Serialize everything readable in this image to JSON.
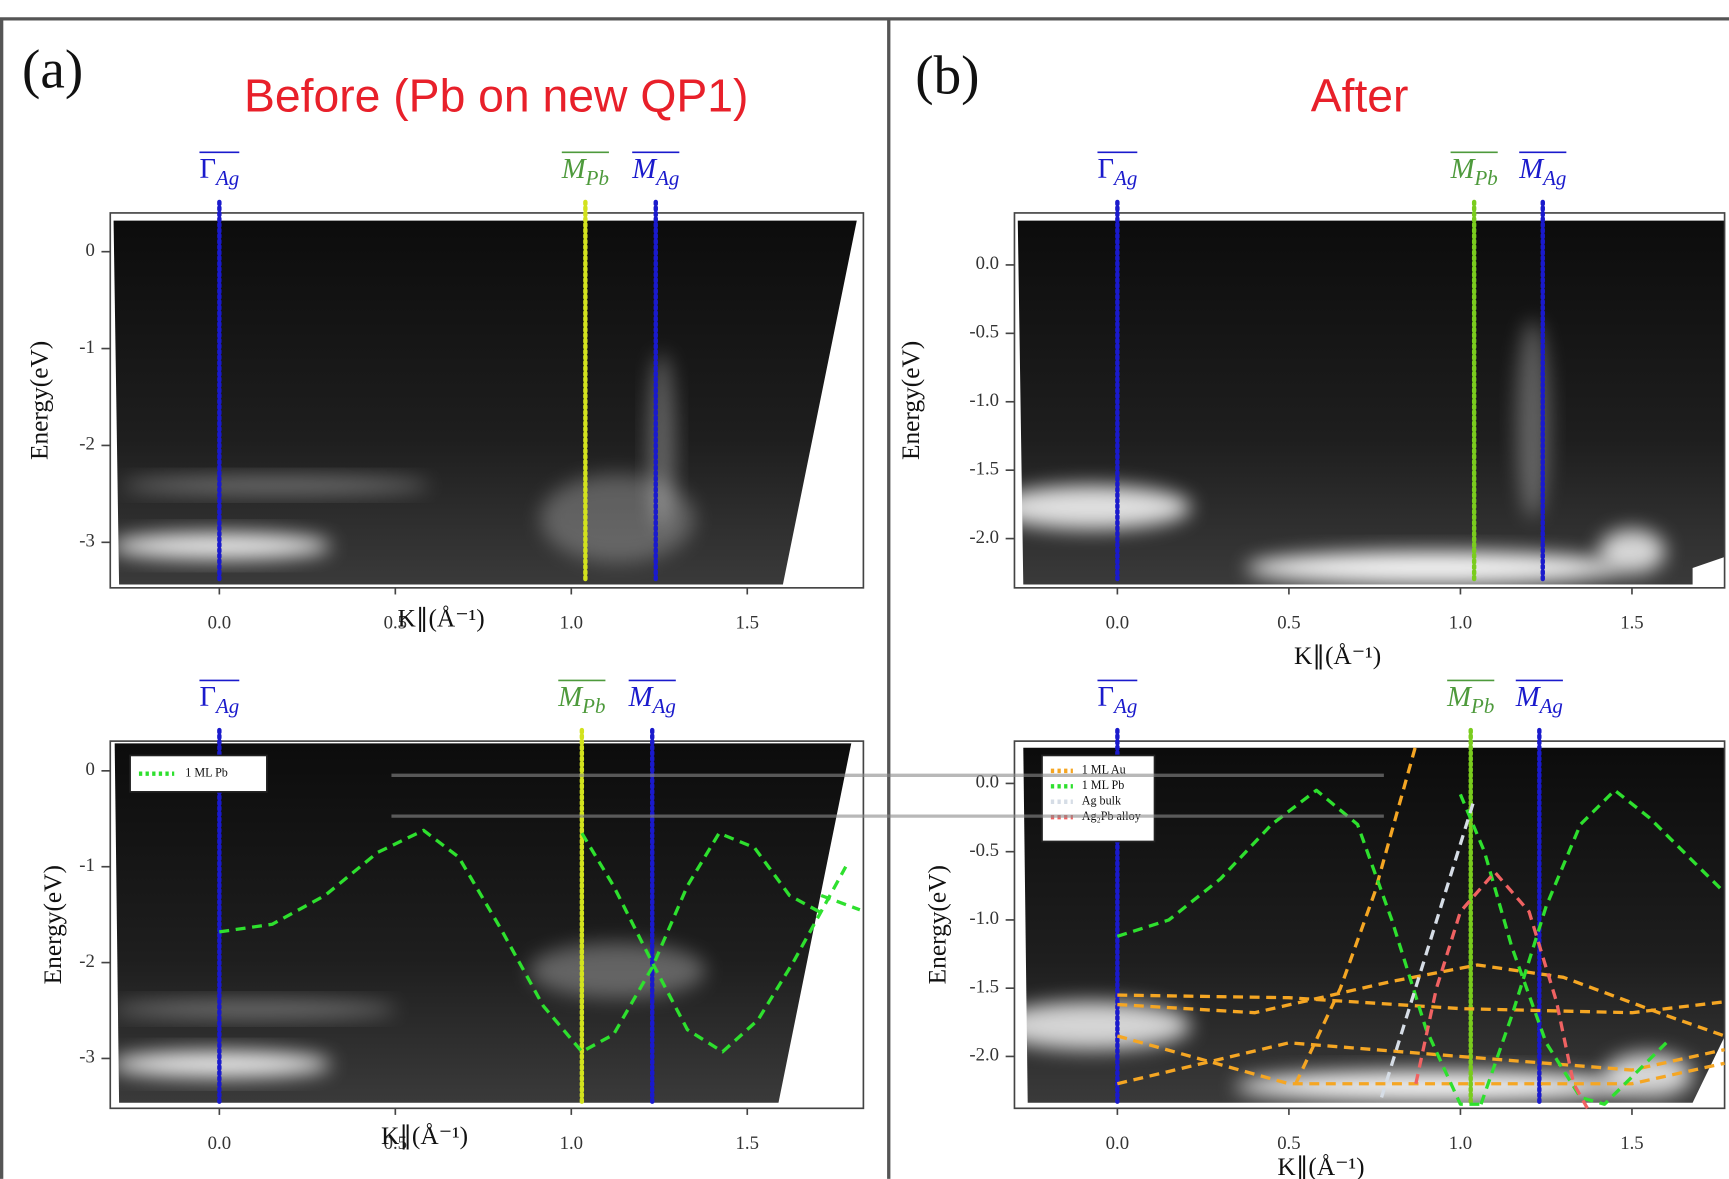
{
  "panels": [
    {
      "label": "(a)",
      "title": "Before (Pb on new QP1)",
      "plots": [
        {
          "ylabel": "Energy(eV)",
          "xlabel": "K∥(Å⁻¹)",
          "xlim": [
            -0.31,
            1.83
          ],
          "ylim": [
            -3.47,
            0.4
          ],
          "xticks": [
            {
              "value": 0,
              "label": "0.0"
            },
            0.5,
            {
              "value": 1,
              "label": "1.0"
            },
            1.5
          ],
          "yticks": [
            0,
            -1,
            -2,
            -3
          ],
          "points": [
            {
              "symbol": "Γ",
              "sub": "Ag",
              "x": 0,
              "color": "#1a1acc"
            },
            {
              "symbol": "M",
              "sub": "Pb",
              "x": 1.04,
              "color": "#d2e21e"
            },
            {
              "symbol": "M",
              "sub": "Ag",
              "x": 1.24,
              "color": "#1a1acc"
            }
          ],
          "series": []
        },
        {
          "ylabel": "Energy(eV)",
          "xlabel": "K∥(Å⁻¹)",
          "xlim": [
            -0.31,
            1.83
          ],
          "ylim": [
            -3.52,
            0.31
          ],
          "xticks": [
            {
              "value": 0,
              "label": "0.0"
            },
            0.5,
            {
              "value": 1,
              "label": "1.0"
            },
            1.5
          ],
          "yticks": [
            0,
            -1,
            -2,
            -3
          ],
          "points": [
            {
              "symbol": "Γ",
              "sub": "Ag",
              "x": 0,
              "color": "#1a1acc"
            },
            {
              "symbol": "M",
              "sub": "Pb",
              "x": 1.03,
              "color": "#d2e21e"
            },
            {
              "symbol": "M",
              "sub": "Ag",
              "x": 1.23,
              "color": "#1a1acc"
            }
          ],
          "legend": "upper left",
          "series": [
            {
              "name": "1 ML Pb",
              "color": "#2ee02e",
              "x": [
                0,
                0.15,
                0.3,
                0.45,
                0.58,
                0.68,
                0.8,
                0.92,
                1.03,
                1.12,
                1.23,
                1.33,
                1.42,
                1.52,
                1.62,
                1.72,
                null,
                1.03,
                1.12,
                1.23,
                1.33,
                1.43,
                1.53,
                1.63,
                1.72,
                1.78,
                null,
                1.71,
                1.82
              ],
              "values": [
                -1.68,
                -1.6,
                -1.3,
                -0.85,
                -0.62,
                -0.9,
                -1.65,
                -2.45,
                -2.93,
                -2.75,
                -2.05,
                -1.2,
                -0.65,
                -0.8,
                -1.3,
                -1.5,
                null,
                -0.65,
                -1.2,
                -2.0,
                -2.7,
                -2.93,
                -2.6,
                -2.0,
                -1.4,
                -1.0,
                null,
                -1.3,
                -1.45
              ]
            }
          ]
        }
      ]
    },
    {
      "label": "(b)",
      "title": "After",
      "plots": [
        {
          "ylabel": "Energy(eV)",
          "xlabel": "K∥(Å⁻¹)",
          "xlim": [
            -0.3,
            1.77
          ],
          "ylim": [
            -2.36,
            0.38
          ],
          "xticks": [
            {
              "value": 0,
              "label": "0.0"
            },
            0.5,
            {
              "value": 1,
              "label": "1.0"
            },
            1.5
          ],
          "yticks": [
            {
              "value": 0,
              "label": "0.0"
            },
            -0.5,
            {
              "value": -1,
              "label": "-1.0"
            },
            -1.5,
            {
              "value": -2,
              "label": "-2.0"
            }
          ],
          "points": [
            {
              "symbol": "Γ",
              "sub": "Ag",
              "x": 0,
              "color": "#1a1acc"
            },
            {
              "symbol": "M",
              "sub": "Pb",
              "x": 1.04,
              "color": "#7acc1e"
            },
            {
              "symbol": "M",
              "sub": "Ag",
              "x": 1.24,
              "color": "#1a1acc"
            }
          ],
          "series": []
        },
        {
          "ylabel": "Energy(eV)",
          "xlabel": "K∥(Å⁻¹)",
          "xlim": [
            -0.3,
            1.77
          ],
          "ylim": [
            -2.38,
            0.31
          ],
          "xticks": [
            {
              "value": 0,
              "label": "0.0"
            },
            0.5,
            {
              "value": 1,
              "label": "1.0"
            },
            1.5
          ],
          "yticks": [
            {
              "value": 0,
              "label": "0.0"
            },
            -0.5,
            {
              "value": -1,
              "label": "-1.0"
            },
            -1.5,
            {
              "value": -2,
              "label": "-2.0"
            }
          ],
          "points": [
            {
              "symbol": "Γ",
              "sub": "Ag",
              "x": 0,
              "color": "#1a1acc"
            },
            {
              "symbol": "M",
              "sub": "Pb",
              "x": 1.03,
              "color": "#7acc1e"
            },
            {
              "symbol": "M",
              "sub": "Ag",
              "x": 1.23,
              "color": "#1a1acc"
            }
          ],
          "legend": "upper left",
          "series": [
            {
              "name": "1 ML Au",
              "color": "#f5a623",
              "x": [
                0.52,
                0.65,
                0.75,
                0.87,
                null,
                0,
                0.5,
                1.0,
                1.5,
                1.77,
                null,
                0,
                0.4,
                0.8,
                1.05,
                1.3,
                1.6,
                1.77,
                null,
                0,
                0.5,
                1.0,
                1.5,
                1.77,
                null,
                0,
                0.5,
                1.0,
                1.5,
                1.77
              ],
              "values": [
                -2.2,
                -1.5,
                -0.8,
                0.28,
                null,
                -1.55,
                -1.57,
                -1.65,
                -1.68,
                -1.6,
                null,
                -1.62,
                -1.68,
                -1.45,
                -1.33,
                -1.42,
                -1.7,
                -1.85,
                null,
                -2.2,
                -1.9,
                -2.0,
                -2.1,
                -1.95,
                null,
                -1.85,
                -2.2,
                -2.2,
                -2.2,
                -2.05
              ]
            },
            {
              "name": "1 ML Pb",
              "color": "#2ee02e",
              "x": [
                0,
                0.15,
                0.3,
                0.45,
                0.58,
                0.7,
                0.8,
                0.9,
                1.0,
                1.06,
                null,
                1.06,
                1.15,
                1.25,
                1.35,
                1.45,
                1.55,
                1.65,
                1.77,
                null,
                1.0,
                1.07,
                1.15,
                1.25,
                1.35,
                1.42,
                1.52,
                1.6
              ],
              "values": [
                -1.12,
                -1.0,
                -0.7,
                -0.3,
                -0.05,
                -0.3,
                -1.0,
                -1.8,
                -2.35,
                -2.35,
                null,
                -2.35,
                -1.7,
                -0.9,
                -0.3,
                -0.05,
                -0.25,
                -0.5,
                -0.8,
                null,
                -0.08,
                -0.5,
                -1.2,
                -1.9,
                -2.3,
                -2.35,
                -2.1,
                -1.9
              ]
            },
            {
              "name": "Ag bulk",
              "color": "#d6dde6",
              "x": [
                0.77,
                1.04
              ],
              "values": [
                -2.3,
                -0.12
              ]
            },
            {
              "name": "Ag₂Pb alloy",
              "color": "#f06262",
              "x": [
                0.87,
                0.93,
                1.0,
                1.1,
                1.2,
                1.28,
                1.33,
                1.37
              ],
              "values": [
                -2.2,
                -1.5,
                -0.94,
                -0.65,
                -0.94,
                -1.6,
                -2.2,
                -2.38
              ]
            }
          ]
        }
      ]
    }
  ]
}
